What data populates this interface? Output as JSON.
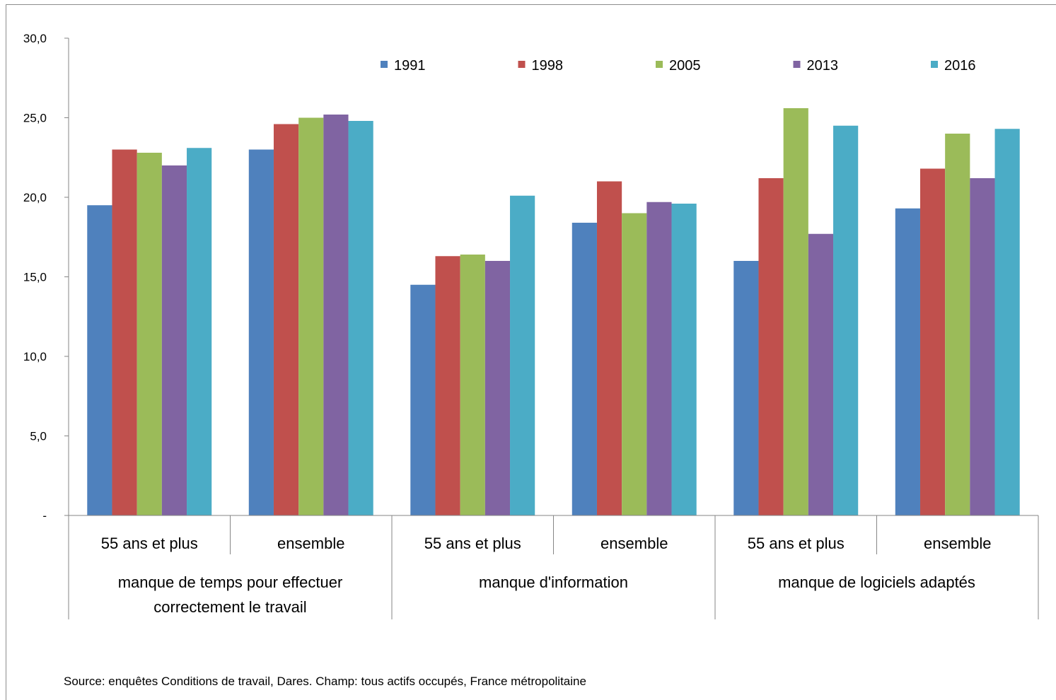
{
  "chart_data": {
    "type": "bar",
    "ylim": [
      0,
      30
    ],
    "ytick_values": [
      0,
      5,
      10,
      15,
      20,
      25,
      30
    ],
    "yticks": [
      "-",
      "5,0",
      "10,0",
      "15,0",
      "20,0",
      "25,0",
      "30,0"
    ],
    "categories": [
      "55 ans et plus",
      "ensemble",
      "55 ans et plus",
      "ensemble",
      "55 ans et plus",
      "ensemble"
    ],
    "group_labels": [
      [
        "manque de temps pour effectuer",
        "correctement le travail"
      ],
      [
        "manque d'information"
      ],
      [
        "manque de logiciels adaptés"
      ]
    ],
    "series": [
      {
        "name": "1991",
        "color": "#4F81BD",
        "values": [
          19.5,
          23.0,
          14.5,
          18.4,
          16.0,
          19.3
        ]
      },
      {
        "name": "1998",
        "color": "#C0504D",
        "values": [
          23.0,
          24.6,
          16.3,
          21.0,
          21.2,
          21.8
        ]
      },
      {
        "name": "2005",
        "color": "#9BBB59",
        "values": [
          22.8,
          25.0,
          16.4,
          19.0,
          25.6,
          24.0
        ]
      },
      {
        "name": "2013",
        "color": "#8064A2",
        "values": [
          22.0,
          25.2,
          16.0,
          19.7,
          17.7,
          21.2
        ]
      },
      {
        "name": "2016",
        "color": "#4BACC6",
        "values": [
          23.1,
          24.8,
          20.1,
          19.6,
          24.5,
          24.3
        ]
      }
    ],
    "legend_position": "top",
    "grid": false,
    "axis_color": "#868686"
  },
  "source": "Source: enquêtes Conditions de travail, Dares. Champ: tous actifs occupés, France métropolitaine"
}
